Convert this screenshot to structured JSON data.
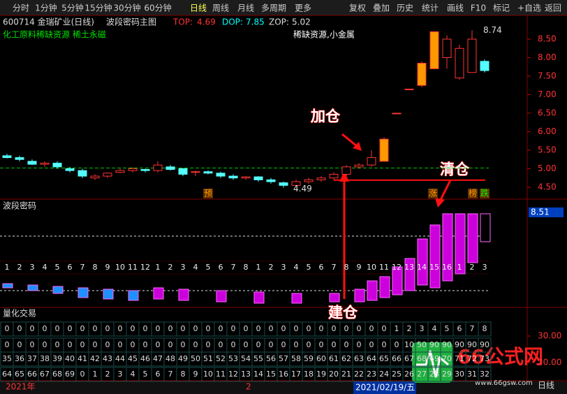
{
  "toolbar": {
    "left": [
      "分时",
      "1分钟",
      "5分钟",
      "15分钟",
      "30分钟",
      "60分钟",
      "日线",
      "周线",
      "月线",
      "多周期",
      "更多"
    ],
    "right": [
      "复权",
      "叠加",
      "历史",
      "统计",
      "画线",
      "F10",
      "标记",
      "+自选",
      "返回"
    ]
  },
  "main_panel": {
    "stock": "600714 金瑞矿业(日线)",
    "indicator": "波段密码主图",
    "top": {
      "label": "TOP:",
      "value": 4.69
    },
    "dop": {
      "label": "DOP:",
      "value": 7.85
    },
    "zop": {
      "label": "ZOP:",
      "value": 5.02
    },
    "concepts": "化工原料稀缺资源 稀土永磁",
    "sector": "稀缺资源,小金属",
    "high_label": 8.74,
    "low_label": 4.49,
    "markers": [
      "预",
      "涨",
      "榜",
      "跌"
    ],
    "price_ticks": [
      {
        "value": 4.5,
        "label": "4.50"
      },
      {
        "value": 5,
        "label": "5.00"
      },
      {
        "value": 5.5,
        "label": "5.50"
      },
      {
        "value": 6,
        "label": "6.00"
      },
      {
        "value": 6.5,
        "label": "6.50"
      },
      {
        "value": 7,
        "label": "7.00"
      },
      {
        "value": 7.5,
        "label": "7.50"
      },
      {
        "value": 8,
        "label": "8.00"
      },
      {
        "value": 8.5,
        "label": "8.50"
      }
    ],
    "candles": [
      [
        5.35,
        5.4,
        5.28,
        5.3
      ],
      [
        5.3,
        5.35,
        5.2,
        5.25
      ],
      [
        5.2,
        5.25,
        5.1,
        5.12
      ],
      [
        5.12,
        5.2,
        5.05,
        5.15
      ],
      [
        5.15,
        5.2,
        5.0,
        5.05
      ],
      [
        5.0,
        5.05,
        4.9,
        4.95
      ],
      [
        4.95,
        5.0,
        4.75,
        4.8
      ],
      [
        4.75,
        4.85,
        4.7,
        4.8
      ],
      [
        4.8,
        4.9,
        4.75,
        4.88
      ],
      [
        4.9,
        5.0,
        4.88,
        4.95
      ],
      [
        4.95,
        5.05,
        4.9,
        5.0
      ],
      [
        4.98,
        5.0,
        4.9,
        4.95
      ],
      [
        4.95,
        5.2,
        4.9,
        5.1
      ],
      [
        5.05,
        5.1,
        4.95,
        4.98
      ],
      [
        5.0,
        5.02,
        4.8,
        4.85
      ],
      [
        4.9,
        4.95,
        4.8,
        4.92
      ],
      [
        4.92,
        4.95,
        4.85,
        4.88
      ],
      [
        4.88,
        4.92,
        4.75,
        4.8
      ],
      [
        4.8,
        4.85,
        4.7,
        4.75
      ],
      [
        4.75,
        4.8,
        4.7,
        4.78
      ],
      [
        4.78,
        4.8,
        4.65,
        4.7
      ],
      [
        4.7,
        4.75,
        4.6,
        4.65
      ],
      [
        4.62,
        4.65,
        4.49,
        4.55
      ],
      [
        4.55,
        4.7,
        4.52,
        4.65
      ],
      [
        4.65,
        4.75,
        4.6,
        4.7
      ],
      [
        4.7,
        4.8,
        4.65,
        4.75
      ],
      [
        4.75,
        4.9,
        4.7,
        4.85
      ],
      [
        4.85,
        5.1,
        4.8,
        5.05
      ],
      [
        5.05,
        5.15,
        5.0,
        5.1
      ],
      [
        5.1,
        5.5,
        5.05,
        5.3
      ],
      [
        5.2,
        5.85,
        5.2,
        5.8
      ],
      [
        6.5,
        6.5,
        6.5,
        6.5
      ],
      [
        7.15,
        7.15,
        7.15,
        7.15
      ],
      [
        7.25,
        7.9,
        7.2,
        7.85
      ],
      [
        7.7,
        8.7,
        7.7,
        8.7
      ],
      [
        8.0,
        8.6,
        7.7,
        8.5
      ],
      [
        7.45,
        8.35,
        7.4,
        8.25
      ],
      [
        7.6,
        8.74,
        7.6,
        8.5
      ],
      [
        7.9,
        7.95,
        7.6,
        7.65
      ]
    ]
  },
  "annotations": {
    "add": "加仓",
    "clear": "清仓",
    "build": "建仓"
  },
  "wave_panel": {
    "title": "波段密码",
    "price_tag": 8.51,
    "sequence": [
      1,
      2,
      3,
      4,
      5,
      6,
      7,
      8,
      9,
      10,
      11,
      12,
      1,
      2,
      3,
      4,
      5,
      6,
      7,
      8,
      1,
      2,
      3,
      4,
      5,
      6,
      7,
      8,
      9,
      10,
      11,
      12,
      13,
      14,
      15,
      16,
      1,
      2,
      3
    ]
  },
  "quant_panel": {
    "title": "量化交易",
    "axis_labels": [
      {
        "value": 30,
        "label": "30.00"
      },
      {
        "value": 20,
        "label": "20.00"
      }
    ],
    "rows": [
      [
        0,
        0,
        0,
        0,
        0,
        0,
        0,
        0,
        0,
        0,
        0,
        0,
        0,
        0,
        0,
        0,
        0,
        0,
        0,
        0,
        0,
        0,
        0,
        0,
        0,
        0,
        0,
        0,
        0,
        0,
        0,
        1,
        2,
        3,
        4,
        5,
        6,
        7,
        8
      ],
      [
        0,
        0,
        0,
        0,
        0,
        0,
        0,
        0,
        0,
        0,
        0,
        0,
        0,
        0,
        0,
        0,
        0,
        0,
        0,
        0,
        0,
        0,
        0,
        0,
        0,
        0,
        0,
        0,
        0,
        0,
        0,
        0,
        10,
        50,
        90,
        90,
        90,
        90,
        90
      ],
      [
        35,
        36,
        37,
        38,
        39,
        40,
        41,
        42,
        43,
        44,
        45,
        46,
        47,
        48,
        49,
        50,
        51,
        52,
        53,
        54,
        55,
        56,
        57,
        58,
        59,
        60,
        61,
        62,
        63,
        64,
        65,
        66,
        67,
        68,
        69,
        70,
        71,
        72,
        73
      ],
      [
        64,
        65,
        66,
        67,
        68,
        69,
        0,
        1,
        2,
        3,
        4,
        5,
        6,
        7,
        8,
        9,
        10,
        11,
        12,
        13,
        14,
        15,
        16,
        17,
        18,
        19,
        20,
        21,
        22,
        23,
        24,
        25,
        26,
        27,
        28,
        29,
        30,
        31,
        32
      ]
    ]
  },
  "status_bar": {
    "year": "2021年",
    "month": "2",
    "date": "2021/02/19/五",
    "period": "日线"
  },
  "watermark": {
    "name": "66公式网",
    "url": "www.66gsw.com"
  }
}
